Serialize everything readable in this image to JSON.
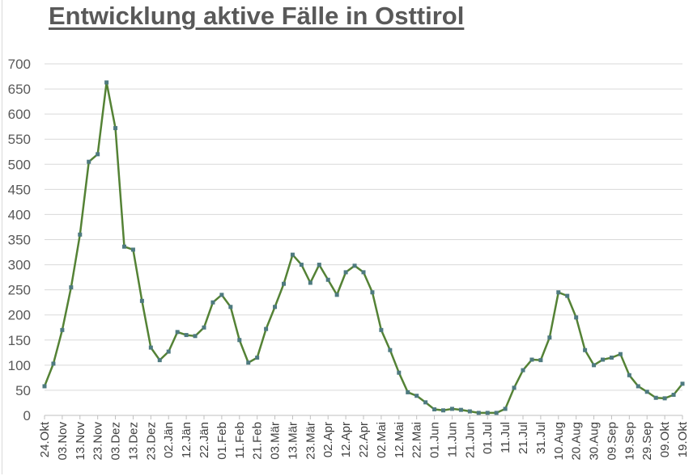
{
  "chart_data": {
    "type": "line",
    "title": "Entwicklung aktive Fälle in Osttirol",
    "xlabel": "",
    "ylabel": "",
    "ylim": [
      0,
      700
    ],
    "yticks": [
      0,
      50,
      100,
      150,
      200,
      250,
      300,
      350,
      400,
      450,
      500,
      550,
      600,
      650,
      700
    ],
    "xtick_labels": [
      "24.Okt",
      "03.Nov",
      "13.Nov",
      "23.Nov",
      "03.Dez",
      "13.Dez",
      "23.Dez",
      "02.Jän",
      "12.Jän",
      "22.Jän",
      "01.Feb",
      "11.Feb",
      "21.Feb",
      "03.Mär",
      "13.Mär",
      "23.Mär",
      "02.Apr",
      "12.Apr",
      "22.Apr",
      "02.Mai",
      "12.Mai",
      "22.Mai",
      "01.Jun",
      "11.Jun",
      "21.Jun",
      "01.Jul",
      "11.Jul",
      "21.Jul",
      "31.Jul",
      "10.Aug",
      "20.Aug",
      "30.Aug",
      "09.Sep",
      "19.Sep",
      "29.Sep",
      "09.Okt",
      "19.Okt"
    ],
    "xtick_interval_days": 10,
    "x_start": "24.Okt",
    "x_end": "19.Okt",
    "sample_interval_days": 5,
    "grid": true,
    "legend": "none",
    "series": [
      {
        "values": [
          58,
          103,
          170,
          255,
          360,
          505,
          520,
          663,
          572,
          336,
          330,
          228,
          135,
          110,
          127,
          166,
          160,
          158,
          175,
          225,
          240,
          216,
          150,
          105,
          115,
          172,
          216,
          262,
          320,
          300,
          264,
          300,
          270,
          240,
          285,
          298,
          285,
          245,
          170,
          130,
          85,
          46,
          39,
          26,
          12,
          10,
          13,
          11,
          8,
          5,
          5,
          5,
          13,
          55,
          90,
          111,
          110,
          155,
          245,
          238,
          195,
          130,
          100,
          111,
          115,
          122,
          80,
          58,
          47,
          35,
          34,
          41,
          63
        ],
        "line_color": "#548235",
        "marker_color": "#4e7a80"
      }
    ]
  }
}
